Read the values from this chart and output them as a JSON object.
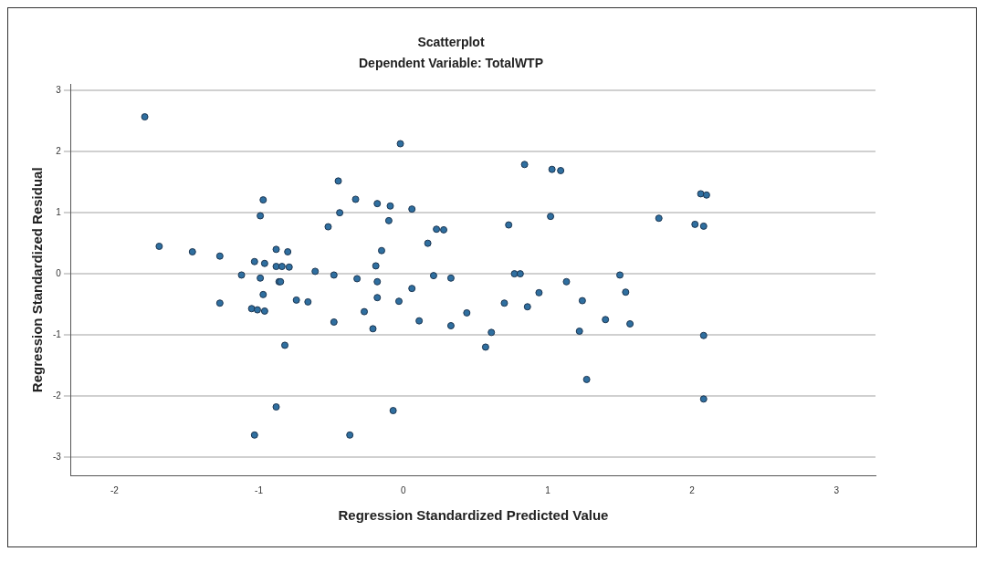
{
  "chart_data": {
    "type": "scatter",
    "title": "Scatterplot",
    "subtitle": "Dependent Variable: TotalWTP",
    "xlabel": "Regression Standardized Predicted Value",
    "ylabel": "Regression Standardized Residual",
    "xlim": [
      -2.3,
      3.27
    ],
    "ylim": [
      -3.3,
      3.1
    ],
    "xticks": [
      -2,
      -1,
      0,
      1,
      2,
      3
    ],
    "yticks": [
      -3,
      -2,
      -1,
      0,
      1,
      2,
      3
    ],
    "grid": "y",
    "marker": "circle",
    "series": [
      {
        "color": "#2f6fa0",
        "x": [
          -1.79,
          -1.69,
          -1.46,
          -1.27,
          -1.27,
          -1.12,
          -1.03,
          -0.96,
          -0.88,
          -0.8,
          -0.97,
          -0.99,
          -0.52,
          -0.45,
          -0.44,
          -0.88,
          -0.84,
          -0.79,
          -0.99,
          -0.86,
          -0.85,
          -0.61,
          -0.48,
          -0.97,
          -1.05,
          -1.01,
          -0.96,
          -0.74,
          -0.66,
          -0.48,
          -0.82,
          -0.88,
          -1.03,
          -0.02,
          -0.33,
          -0.18,
          -0.09,
          0.06,
          -0.1,
          0.17,
          0.23,
          0.28,
          -0.15,
          -0.19,
          -0.32,
          -0.18,
          0.21,
          0.33,
          0.06,
          -0.18,
          -0.03,
          -0.27,
          -0.21,
          0.11,
          0.33,
          0.44,
          0.61,
          0.57,
          0.7,
          0.86,
          0.94,
          0.77,
          0.81,
          0.73,
          0.84,
          1.03,
          1.09,
          1.02,
          1.13,
          1.24,
          1.22,
          1.27,
          1.4,
          -0.07,
          -0.37,
          1.5,
          1.54,
          1.57,
          1.77,
          2.02,
          2.08,
          2.06,
          2.1,
          2.08,
          2.08
        ],
        "values": [
          2.57,
          0.45,
          0.36,
          0.29,
          -0.48,
          -0.02,
          0.2,
          0.17,
          0.4,
          0.36,
          1.21,
          0.95,
          0.77,
          1.52,
          1.0,
          0.12,
          0.12,
          0.11,
          -0.07,
          -0.13,
          -0.13,
          0.04,
          -0.02,
          -0.34,
          -0.57,
          -0.59,
          -0.61,
          -0.43,
          -0.46,
          -0.79,
          -1.17,
          -2.18,
          -2.64,
          2.13,
          1.22,
          1.15,
          1.11,
          1.06,
          0.87,
          0.5,
          0.73,
          0.72,
          0.38,
          0.13,
          -0.08,
          -0.13,
          -0.03,
          -0.07,
          -0.24,
          -0.39,
          -0.45,
          -0.62,
          -0.9,
          -0.77,
          -0.85,
          -0.64,
          -0.96,
          -1.2,
          -0.48,
          -0.54,
          -0.31,
          0.0,
          0.0,
          0.8,
          1.79,
          1.71,
          1.69,
          0.94,
          -0.13,
          -0.44,
          -0.94,
          -1.73,
          -0.75,
          -2.24,
          -2.64,
          -0.02,
          -0.3,
          -0.82,
          0.91,
          0.81,
          0.78,
          1.31,
          1.29,
          -1.01,
          -2.05
        ]
      }
    ]
  }
}
